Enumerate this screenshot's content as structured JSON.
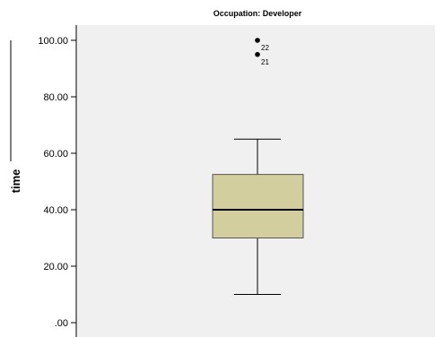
{
  "chart_data": {
    "type": "boxplot",
    "title": "Occupation: Developer",
    "ylabel": "time",
    "xlabel": "",
    "ylim": [
      0,
      100
    ],
    "y_ticks": [
      0,
      20,
      40,
      60,
      80,
      100
    ],
    "y_tick_labels": [
      ".00",
      "20.00",
      "40.00",
      "60.00",
      "80.00",
      "100.00"
    ],
    "grid": false,
    "box": {
      "whisker_low": 10,
      "q1": 30,
      "median": 40,
      "q3": 52.5,
      "whisker_high": 65
    },
    "outliers": [
      {
        "value": 100,
        "label": "22"
      },
      {
        "value": 95,
        "label": "21"
      }
    ],
    "colors": {
      "plot_background": "#f0f0f0",
      "box_fill": "#d3ce9e",
      "lines": "#000000"
    }
  }
}
